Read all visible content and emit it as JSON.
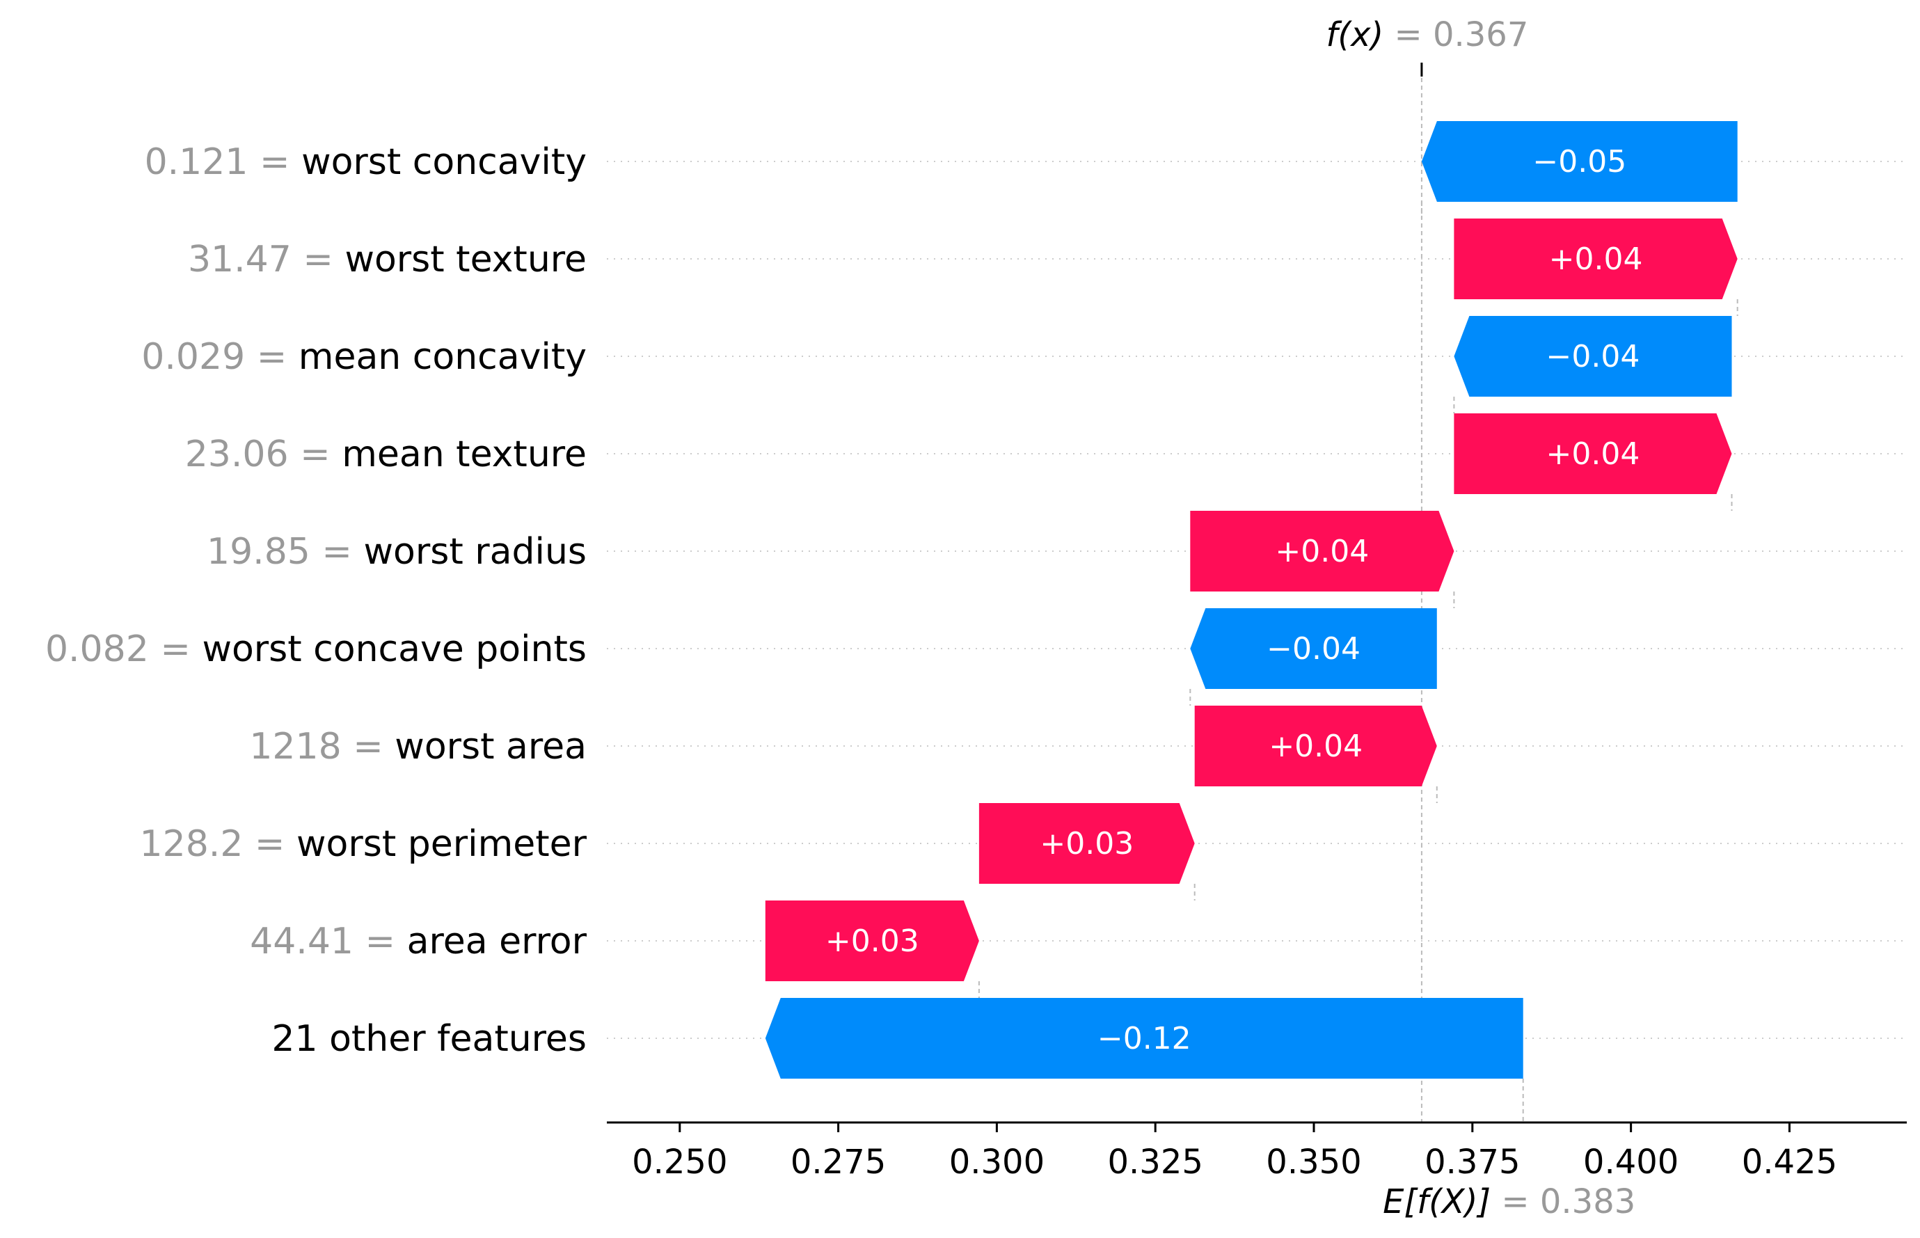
{
  "chart_data": {
    "type": "waterfall",
    "title": "",
    "xlabel": "",
    "ylabel": "",
    "xlim": [
      0.2385,
      0.4435
    ],
    "xticks": [
      "0.250",
      "0.275",
      "0.300",
      "0.325",
      "0.350",
      "0.375",
      "0.400",
      "0.425"
    ],
    "base_value": 0.383,
    "output_value": 0.367,
    "fx_label": {
      "name": "f(x)",
      "value": "= 0.367"
    },
    "ex_label": {
      "name": "E[f(X)]",
      "value": "= 0.383"
    },
    "colors": {
      "positive": "#ff0d57",
      "negative": "#008bfb",
      "label_gray": "#999999"
    },
    "features": [
      {
        "value": "0.121",
        "eq": "=",
        "name": "worst concavity",
        "start": 0.4168,
        "end": 0.367,
        "label": "−0.05"
      },
      {
        "value": "31.47",
        "eq": "=",
        "name": "worst texture",
        "start": 0.3721,
        "end": 0.4168,
        "label": "+0.04"
      },
      {
        "value": "0.029",
        "eq": "=",
        "name": "mean concavity",
        "start": 0.4159,
        "end": 0.3721,
        "label": "−0.04"
      },
      {
        "value": "23.06",
        "eq": "=",
        "name": "mean texture",
        "start": 0.3721,
        "end": 0.4159,
        "label": "+0.04"
      },
      {
        "value": "19.85",
        "eq": "=",
        "name": "worst radius",
        "start": 0.3305,
        "end": 0.3721,
        "label": "+0.04"
      },
      {
        "value": "0.082",
        "eq": "=",
        "name": "worst concave points",
        "start": 0.3694,
        "end": 0.3305,
        "label": "−0.04"
      },
      {
        "value": "1218",
        "eq": "=",
        "name": "worst area",
        "start": 0.3312,
        "end": 0.3694,
        "label": "+0.04"
      },
      {
        "value": "128.2",
        "eq": "=",
        "name": "worst perimeter",
        "start": 0.2972,
        "end": 0.3312,
        "label": "+0.03"
      },
      {
        "value": "44.41",
        "eq": "=",
        "name": "area error",
        "start": 0.2635,
        "end": 0.2972,
        "label": "+0.03"
      },
      {
        "value": "",
        "eq": "",
        "name": "21 other features",
        "start": 0.383,
        "end": 0.2635,
        "label": "−0.12"
      }
    ]
  }
}
